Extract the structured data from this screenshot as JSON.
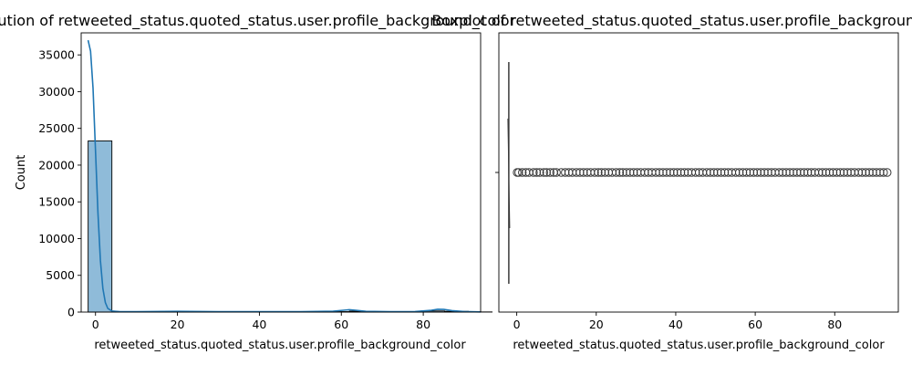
{
  "chart_data": [
    {
      "type": "histogram",
      "title": "Distribution of retweeted_status.quoted_status.user.profile_background_color",
      "xlabel": "retweeted_status.quoted_status.user.profile_background_color",
      "ylabel": "Count",
      "xlim": [
        -3.5,
        94
      ],
      "ylim": [
        0,
        38000
      ],
      "xticks": [
        0,
        20,
        40,
        60,
        80
      ],
      "yticks": [
        0,
        5000,
        10000,
        15000,
        20000,
        25000,
        30000,
        35000
      ],
      "bins": [
        {
          "x0": -1.8,
          "x1": 4.0,
          "count": 23300
        },
        {
          "x0": 4.0,
          "x1": 9.8,
          "count": 40
        },
        {
          "x0": 9.8,
          "x1": 15.6,
          "count": 60
        },
        {
          "x0": 15.6,
          "x1": 21.4,
          "count": 80
        },
        {
          "x0": 21.4,
          "x1": 27.2,
          "count": 70
        },
        {
          "x0": 27.2,
          "x1": 33.0,
          "count": 50
        },
        {
          "x0": 33.0,
          "x1": 38.8,
          "count": 40
        },
        {
          "x0": 38.8,
          "x1": 44.6,
          "count": 40
        },
        {
          "x0": 44.6,
          "x1": 50.4,
          "count": 30
        },
        {
          "x0": 50.4,
          "x1": 56.2,
          "count": 40
        },
        {
          "x0": 56.2,
          "x1": 62.0,
          "count": 60
        },
        {
          "x0": 62.0,
          "x1": 67.8,
          "count": 120
        },
        {
          "x0": 67.8,
          "x1": 73.6,
          "count": 30
        },
        {
          "x0": 73.6,
          "x1": 79.4,
          "count": 30
        },
        {
          "x0": 79.4,
          "x1": 85.2,
          "count": 150
        },
        {
          "x0": 85.2,
          "x1": 91.0,
          "count": 100
        },
        {
          "x0": 91.0,
          "x1": 96.8,
          "count": 20
        }
      ],
      "kde": [
        [
          -1.8,
          37000
        ],
        [
          -1.2,
          35500
        ],
        [
          -0.6,
          30500
        ],
        [
          0.0,
          22000
        ],
        [
          0.6,
          13500
        ],
        [
          1.2,
          7000
        ],
        [
          1.8,
          3200
        ],
        [
          2.4,
          1300
        ],
        [
          3.0,
          500
        ],
        [
          4.0,
          150
        ],
        [
          6.0,
          50
        ],
        [
          10.0,
          60
        ],
        [
          20.0,
          100
        ],
        [
          30.0,
          60
        ],
        [
          40.0,
          50
        ],
        [
          50.0,
          60
        ],
        [
          58.0,
          120
        ],
        [
          60.5,
          250
        ],
        [
          62.0,
          320
        ],
        [
          63.5,
          250
        ],
        [
          66.0,
          100
        ],
        [
          72.0,
          60
        ],
        [
          78.0,
          80
        ],
        [
          82.0,
          250
        ],
        [
          83.5,
          380
        ],
        [
          85.0,
          360
        ],
        [
          87.0,
          200
        ],
        [
          90.0,
          80
        ],
        [
          94.0,
          20
        ]
      ],
      "bar_color": "#1f77b4",
      "bar_fill_opacity": 0.5,
      "line_color": "#1f77b4"
    },
    {
      "type": "box",
      "title": "Boxplot of retweeted_status.quoted_status.user.profile_background_color",
      "xlabel": "retweeted_status.quoted_status.user.profile_background_color",
      "xlim": [
        -4.5,
        96
      ],
      "xticks": [
        0,
        20,
        40,
        60,
        80
      ],
      "median": -2,
      "q1": -2,
      "q3": -2,
      "whisker_low": -2,
      "whisker_high": -2,
      "outliers": [
        0.1,
        0.5,
        1.4,
        2.3,
        3.1,
        4.2,
        5.0,
        5.8,
        6.8,
        7.5,
        8.4,
        9.3,
        10.0,
        11.2,
        12.2,
        13.1,
        14.0,
        15.0,
        15.9,
        16.8,
        17.7,
        18.6,
        19.6,
        20.5,
        21.3,
        22.2,
        23.1,
        24.0,
        25.0,
        25.9,
        26.7,
        27.6,
        28.5,
        29.4,
        30.3,
        31.2,
        32.2,
        33.1,
        34.0,
        35.0,
        35.9,
        36.8,
        37.7,
        38.6,
        39.5,
        40.4,
        41.3,
        42.2,
        43.1,
        44.0,
        45.0,
        45.9,
        46.8,
        47.8,
        48.7,
        49.6,
        50.5,
        51.4,
        52.3,
        53.2,
        54.1,
        55.1,
        56.0,
        56.9,
        57.8,
        58.7,
        59.6,
        60.5,
        61.4,
        62.3,
        63.2,
        64.1,
        65.0,
        66.0,
        66.9,
        67.8,
        68.7,
        69.6,
        70.5,
        71.4,
        72.3,
        73.2,
        74.1,
        75.0,
        76.0,
        76.9,
        77.8,
        78.7,
        79.6,
        80.5,
        81.4,
        82.3,
        83.2,
        84.1,
        85.0,
        86.0,
        86.9,
        87.8,
        88.7,
        89.6,
        90.5,
        91.4,
        92.3,
        93.2
      ],
      "box_color": "#3a3a3a"
    }
  ]
}
